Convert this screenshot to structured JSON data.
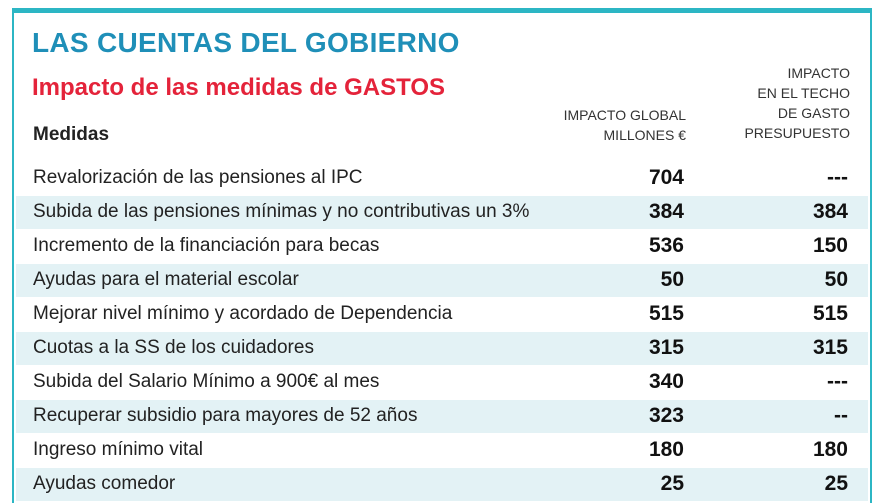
{
  "title": "LAS CUENTAS DEL GOBIERNO",
  "subtitle": "Impacto de las medidas de GASTOS",
  "headers": {
    "medidas": "Medidas",
    "global_line1": "IMPACTO GLOBAL",
    "global_line2": "MILLONES €",
    "techo_line1": "IMPACTO",
    "techo_line2": "EN EL TECHO",
    "techo_line3": "DE GASTO",
    "techo_line4": "PRESUPUESTO"
  },
  "rows": [
    {
      "name": "Revalorización de las pensiones al IPC",
      "global": "704",
      "techo": "---"
    },
    {
      "name": "Subida de las pensiones mínimas y no contributivas un 3%",
      "global": "384",
      "techo": "384"
    },
    {
      "name": "Incremento de la financiación para becas",
      "global": "536",
      "techo": "150"
    },
    {
      "name": "Ayudas para el material escolar",
      "global": "50",
      "techo": "50"
    },
    {
      "name": "Mejorar nivel mínimo y acordado de Dependencia",
      "global": "515",
      "techo": "515"
    },
    {
      "name": "Cuotas a la SS de los cuidadores",
      "global": "315",
      "techo": "315"
    },
    {
      "name": "Subida del Salario Mínimo a 900€ al mes",
      "global": "340",
      "techo": "---"
    },
    {
      "name": "Recuperar subsidio para mayores de 52 años",
      "global": "323",
      "techo": "--"
    },
    {
      "name": "Ingreso mínimo vital",
      "global": "180",
      "techo": "180"
    },
    {
      "name": "Ayudas comedor",
      "global": "25",
      "techo": "25"
    }
  ],
  "colors": {
    "accent_border": "#2cb6c4",
    "title": "#1f8fb8",
    "subtitle": "#e4233a",
    "row_stripe": "#e3f2f5"
  }
}
